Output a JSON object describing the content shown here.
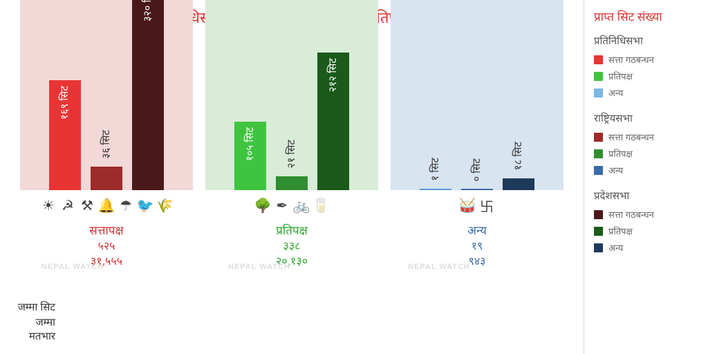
{
  "title": "संघीय प्रतिनिधिसभा र प्रदेशसभामा सत्तापक्ष र प्रतिपक्षको मतभार",
  "chart": {
    "type": "bar",
    "max_value": 330,
    "bg_height": 320,
    "groups": [
      {
        "name": "सत्तापक्ष",
        "name_color": "#d03030",
        "bg_color": "#f3d8d8",
        "bars": [
          {
            "label": "१६९ सिट",
            "value": 169,
            "color": "#e93434",
            "text": "light"
          },
          {
            "label": "३६ सिट",
            "value": 36,
            "color": "#9e2b2b",
            "text": "light"
          },
          {
            "label": "३२० सिट",
            "value": 320,
            "color": "#4a1818",
            "text": "light"
          }
        ],
        "icons": [
          "☀",
          "☭",
          "⚒",
          "🔔",
          "☂",
          "🐦",
          "🌾"
        ],
        "total_seats": "५२५",
        "total_votes": "३१,५५५",
        "val_color": "#d03030"
      },
      {
        "name": "प्रतिपक्ष",
        "name_color": "#2aa82a",
        "bg_color": "#d8ecd8",
        "bars": [
          {
            "label": "१०५ सिट",
            "value": 105,
            "color": "#3fc43f",
            "text": "light"
          },
          {
            "label": "२१ सिट",
            "value": 21,
            "color": "#2f8e2f",
            "text": "light"
          },
          {
            "label": "२१२ सिट",
            "value": 212,
            "color": "#1a5a1a",
            "text": "light"
          }
        ],
        "icons": [
          "🌳",
          "✒",
          "🚲",
          "🥛"
        ],
        "total_seats": "३३८",
        "total_votes": "२०,१३०",
        "val_color": "#2aa82a"
      },
      {
        "name": "अन्य",
        "name_color": "#3a6aa8",
        "bg_color": "#d8e4f0",
        "bars": [
          {
            "label": "१ सिट",
            "value": 1,
            "color": "#5a9ad4",
            "text": "dark"
          },
          {
            "label": "० सिट",
            "value": 0,
            "color": "#3a6aa8",
            "text": "dark"
          },
          {
            "label": "१८ सिट",
            "value": 18,
            "color": "#1e3a5a",
            "text": "dark"
          }
        ],
        "icons": [
          "🥁",
          "卐"
        ],
        "total_seats": "१९",
        "total_votes": "९४३",
        "val_color": "#3a6aa8"
      }
    ],
    "totals_labels": {
      "seats": "जम्मा सिट",
      "votes": "जम्मा मतभार"
    }
  },
  "sidebar": {
    "title": "प्राप्त सिट संख्या",
    "sections": [
      {
        "heading": "प्रतिनिधिसभा",
        "items": [
          {
            "color": "#e93434",
            "label": "सत्ता गठबन्धन"
          },
          {
            "color": "#3fc43f",
            "label": "प्रतिपक्ष"
          },
          {
            "color": "#7ab8e8",
            "label": "अन्य"
          }
        ]
      },
      {
        "heading": "राष्ट्रियसभा",
        "items": [
          {
            "color": "#9e2b2b",
            "label": "सत्ता गठबन्धन"
          },
          {
            "color": "#2f8e2f",
            "label": "प्रतिपक्ष"
          },
          {
            "color": "#3a6aa8",
            "label": "अन्य"
          }
        ]
      },
      {
        "heading": "प्रदेशसभा",
        "items": [
          {
            "color": "#4a1818",
            "label": "सत्ता गठबन्धन"
          },
          {
            "color": "#1a5a1a",
            "label": "प्रतिपक्ष"
          },
          {
            "color": "#1e3a5a",
            "label": "अन्य"
          }
        ]
      }
    ]
  },
  "watermark": "NEPAL WATCH"
}
